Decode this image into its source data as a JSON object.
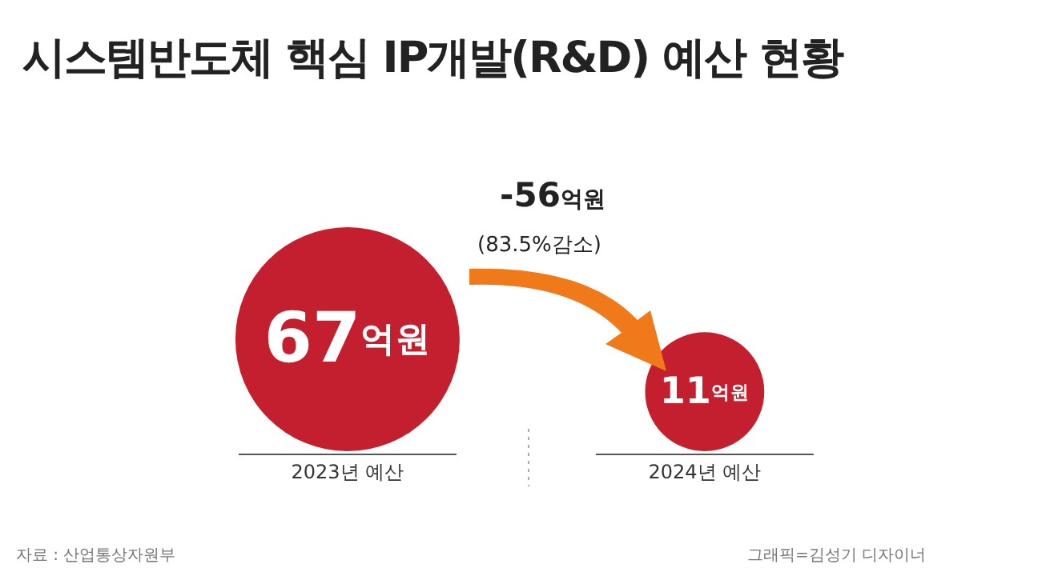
{
  "chart_data": {
    "type": "other",
    "title": "시스템반도체 핵심 IP개발(R&D) 예산 현황",
    "categories": [
      "2023년 예산",
      "2024년 예산"
    ],
    "values": [
      67,
      11
    ],
    "colors": [
      "#c41f2e",
      "#c41f2e"
    ],
    "value_labels": [
      "67억원",
      "11억원"
    ],
    "annotations": [
      "-56억원",
      "(83.5%감소)",
      "자료 : 산업통상자원부",
      "그래픽=김성기 디자이너"
    ]
  }
}
